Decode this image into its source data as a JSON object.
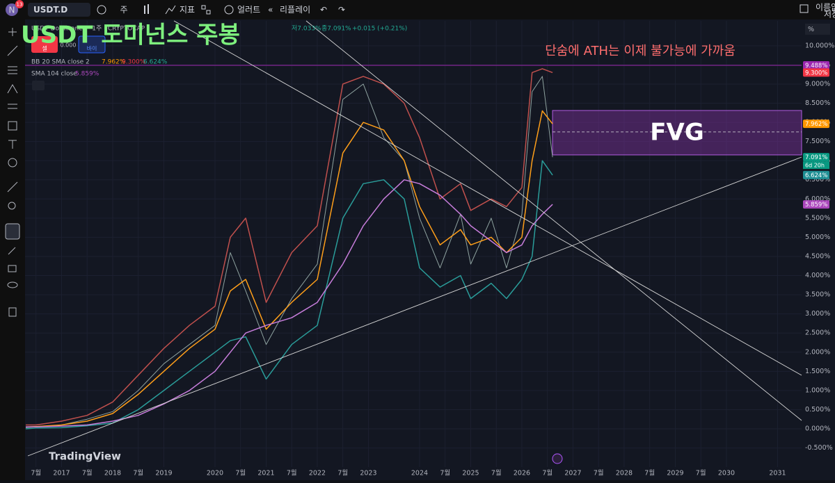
{
  "toolbar": {
    "avatar": "N",
    "notifications": "13",
    "symbol": "USDT.D",
    "interval": "주",
    "indicators": "지표",
    "alerts": "얼러트",
    "replay": "리플레이",
    "layout_name": "이름없",
    "save": "저장"
  },
  "legend": {
    "symbol_line": "USDT Dominance · 1주 · CRYPTOCAP",
    "low": "저7.033%",
    "close": "종7.091%",
    "change": "+0.015 (+0.21%)",
    "sell": "셀",
    "spread": "0.000",
    "buy": "바이",
    "bb_name": "BB 20 SMA close 2",
    "bb_basis": "7.962%",
    "bb_upper": "9.300%",
    "bb_lower": "6.624%",
    "sma_name": "SMA 104 close",
    "sma_value": "5.859%"
  },
  "axis_unit": "%",
  "brand": "TradingView",
  "chart_data": {
    "type": "line",
    "title": "USDT 도미넌스 주봉",
    "annotation": "단숨에 ATH는 이제 불가능에 가까움",
    "fvg": {
      "label": "FVG",
      "from": 7.15,
      "to": 8.31,
      "mid": 7.75
    },
    "x": [
      2016.3,
      2016.5,
      2017.0,
      2017.5,
      2018.0,
      2018.5,
      2019.0,
      2019.5,
      2020.0,
      2020.3,
      2020.6,
      2021.0,
      2021.5,
      2022.0,
      2022.5,
      2022.9,
      2023.3,
      2023.7,
      2024.0,
      2024.4,
      2024.8,
      2025.0,
      2025.4,
      2025.7,
      2026.0,
      2026.2,
      2026.4,
      2026.6
    ],
    "series": [
      {
        "name": "USDT.D",
        "color": "#8fa3a0",
        "values": [
          0.03,
          0.05,
          0.1,
          0.25,
          0.45,
          1.0,
          1.7,
          2.2,
          2.7,
          4.6,
          3.6,
          2.2,
          3.4,
          4.3,
          8.6,
          9.0,
          7.6,
          7.0,
          5.5,
          4.2,
          5.6,
          4.3,
          5.5,
          4.2,
          5.6,
          8.8,
          9.2,
          7.091
        ]
      },
      {
        "name": "BB upper",
        "color": "#c0504d",
        "values": [
          0.1,
          0.1,
          0.2,
          0.35,
          0.7,
          1.4,
          2.1,
          2.7,
          3.2,
          5.0,
          5.5,
          3.3,
          4.6,
          5.3,
          9.0,
          9.2,
          9.0,
          8.5,
          7.6,
          6.0,
          6.4,
          5.7,
          6.0,
          5.8,
          6.3,
          9.3,
          9.4,
          9.3
        ]
      },
      {
        "name": "BB lower",
        "color": "#2a9d9a",
        "values": [
          0.0,
          0.02,
          0.03,
          0.08,
          0.15,
          0.5,
          1.0,
          1.5,
          2.0,
          2.3,
          2.4,
          1.3,
          2.2,
          2.7,
          5.5,
          6.4,
          6.5,
          6.0,
          4.2,
          3.7,
          4.0,
          3.4,
          3.8,
          3.4,
          3.9,
          4.5,
          7.0,
          6.624
        ]
      },
      {
        "name": "BB basis",
        "color": "#ff9f1a",
        "values": [
          0.05,
          0.06,
          0.1,
          0.2,
          0.4,
          0.9,
          1.5,
          2.1,
          2.6,
          3.6,
          3.9,
          2.6,
          3.3,
          3.9,
          7.2,
          8.0,
          7.8,
          7.0,
          5.8,
          4.8,
          5.2,
          4.8,
          5.0,
          4.6,
          5.0,
          7.0,
          8.3,
          7.962
        ]
      },
      {
        "name": "SMA 104",
        "color": "#c77ddb",
        "values": [
          0.05,
          0.05,
          0.07,
          0.1,
          0.2,
          0.35,
          0.65,
          1.0,
          1.5,
          2.0,
          2.5,
          2.7,
          2.9,
          3.3,
          4.3,
          5.3,
          6.0,
          6.5,
          6.4,
          6.1,
          5.6,
          5.3,
          4.9,
          4.6,
          4.8,
          5.3,
          5.6,
          5.859
        ]
      }
    ],
    "badges": [
      {
        "value": 9.488,
        "label": "9.488%",
        "color": "#9c27b0",
        "line": true
      },
      {
        "value": 9.3,
        "label": "9.300%",
        "color": "#f23645"
      },
      {
        "value": 7.962,
        "label": "7.962%",
        "color": "#ff9800"
      },
      {
        "value": 7.091,
        "label": "7.091%",
        "color": "#089981"
      },
      {
        "value": 6.624,
        "label": "6.624%",
        "color": "#1f8f94"
      },
      {
        "value": 5.859,
        "label": "5.859%",
        "color": "#ab47bc"
      }
    ],
    "countdown": "6d 20h",
    "xlim": [
      2016.286,
      2031.47
    ],
    "ylim": [
      -0.78,
      10.65
    ],
    "yticks": [
      {
        "value": -0.5,
        "label": "-0.500%"
      },
      {
        "value": 0,
        "label": "0.000%"
      },
      {
        "value": 0.5,
        "label": "0.500%"
      },
      {
        "value": 1,
        "label": "1.000%"
      },
      {
        "value": 1.5,
        "label": "1.500%"
      },
      {
        "value": 2,
        "label": "2.000%"
      },
      {
        "value": 2.5,
        "label": "2.500%"
      },
      {
        "value": 3,
        "label": "3.000%"
      },
      {
        "value": 3.5,
        "label": "3.500%"
      },
      {
        "value": 4,
        "label": "4.000%"
      },
      {
        "value": 4.5,
        "label": "4.500%"
      },
      {
        "value": 5,
        "label": "5.000%"
      },
      {
        "value": 5.5,
        "label": "5.500%"
      },
      {
        "value": 6,
        "label": "6.000%"
      },
      {
        "value": 6.5,
        "label": "6.500%"
      },
      {
        "value": 7,
        "label": "7.000%"
      },
      {
        "value": 7.5,
        "label": "7.500%"
      },
      {
        "value": 8,
        "label": "8.000%"
      },
      {
        "value": 8.5,
        "label": "8.500%"
      },
      {
        "value": 9,
        "label": "9.000%"
      },
      {
        "value": 9.5,
        "label": "9.500%"
      },
      {
        "value": 10,
        "label": "10.000%"
      }
    ],
    "xticks": [
      {
        "value": 2016.5,
        "label": "7월"
      },
      2017,
      {
        "value": 2017.5,
        "label": "7월"
      },
      2018,
      {
        "value": 2018.5,
        "label": "7월"
      },
      2019,
      2020,
      {
        "value": 2020.5,
        "label": "7월"
      },
      2021,
      {
        "value": 2021.5,
        "label": "7월"
      },
      2022,
      {
        "value": 2022.5,
        "label": "7월"
      },
      2023,
      2024,
      {
        "value": 2024.5,
        "label": "7월"
      },
      2025,
      {
        "value": 2025.5,
        "label": "7월"
      },
      2026,
      {
        "value": 2026.5,
        "label": "7월"
      },
      2027,
      {
        "value": 2027.5,
        "label": "7월"
      },
      2028,
      {
        "value": 2028.5,
        "label": "7월"
      },
      2029,
      {
        "value": 2029.5,
        "label": "7월"
      },
      2030,
      2031
    ],
    "grid": true
  }
}
